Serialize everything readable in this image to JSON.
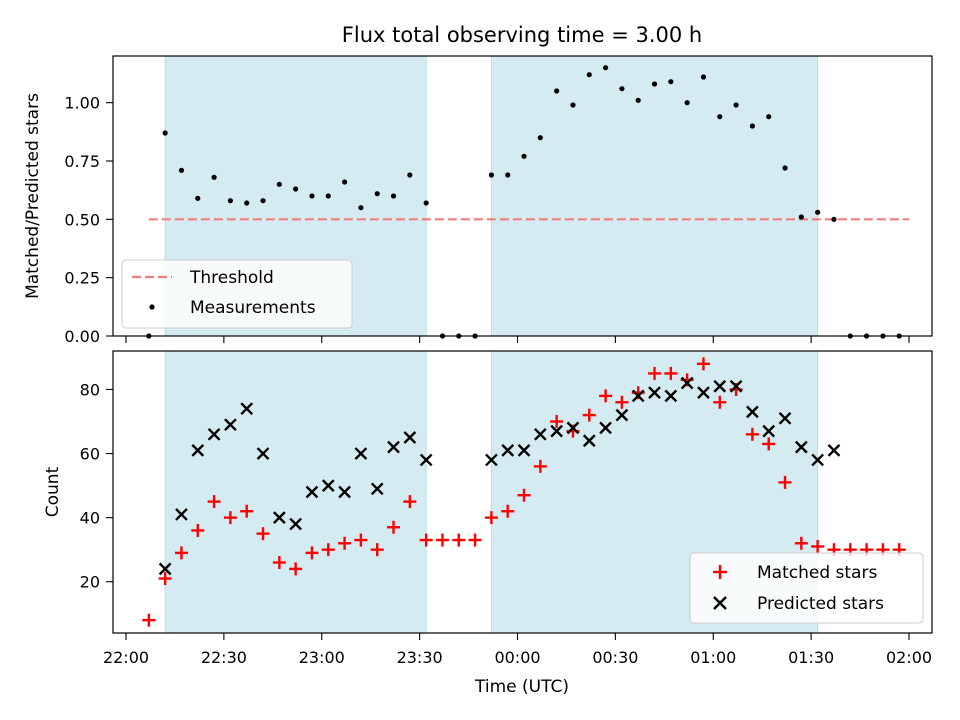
{
  "title": "Flux total observing time = 3.00 h",
  "colors": {
    "band": "#d4ebf1",
    "band_edge": "#b9dde8",
    "threshold": "#f27d7d",
    "matched": "#ff0000",
    "predicted": "#000000",
    "measurement": "#000000"
  },
  "chart_data": [
    {
      "type": "scatter",
      "panel": "top",
      "ylabel": "Matched/Predicted stars",
      "xlabel": "",
      "ylim": [
        0.0,
        1.2
      ],
      "yticks": [
        0.0,
        0.25,
        0.5,
        0.75,
        1.0
      ],
      "ytick_labels": [
        "0.00",
        "0.25",
        "0.50",
        "0.75",
        "1.00"
      ],
      "shaded_intervals": [
        [
          "22:12",
          "23:32"
        ],
        [
          "23:52",
          "01:32"
        ]
      ],
      "threshold": {
        "name": "Threshold",
        "value": 0.5,
        "x": [
          "22:07",
          "02:00"
        ]
      },
      "series": [
        {
          "name": "Measurements",
          "points": [
            [
              "22:07",
              0.0
            ],
            [
              "22:12",
              0.87
            ],
            [
              "22:17",
              0.71
            ],
            [
              "22:22",
              0.59
            ],
            [
              "22:27",
              0.68
            ],
            [
              "22:32",
              0.58
            ],
            [
              "22:37",
              0.57
            ],
            [
              "22:42",
              0.58
            ],
            [
              "22:47",
              0.65
            ],
            [
              "22:52",
              0.63
            ],
            [
              "22:57",
              0.6
            ],
            [
              "23:02",
              0.6
            ],
            [
              "23:07",
              0.66
            ],
            [
              "23:12",
              0.55
            ],
            [
              "23:17",
              0.61
            ],
            [
              "23:22",
              0.6
            ],
            [
              "23:27",
              0.69
            ],
            [
              "23:32",
              0.57
            ],
            [
              "23:37",
              0.0
            ],
            [
              "23:42",
              0.0
            ],
            [
              "23:47",
              0.0
            ],
            [
              "23:52",
              0.69
            ],
            [
              "23:57",
              0.69
            ],
            [
              "00:02",
              0.77
            ],
            [
              "00:07",
              0.85
            ],
            [
              "00:12",
              1.05
            ],
            [
              "00:17",
              0.99
            ],
            [
              "00:22",
              1.12
            ],
            [
              "00:27",
              1.15
            ],
            [
              "00:32",
              1.06
            ],
            [
              "00:37",
              1.01
            ],
            [
              "00:42",
              1.08
            ],
            [
              "00:47",
              1.09
            ],
            [
              "00:52",
              1.0
            ],
            [
              "00:57",
              1.11
            ],
            [
              "01:02",
              0.94
            ],
            [
              "01:07",
              0.99
            ],
            [
              "01:12",
              0.9
            ],
            [
              "01:17",
              0.94
            ],
            [
              "01:22",
              0.72
            ],
            [
              "01:27",
              0.51
            ],
            [
              "01:32",
              0.53
            ],
            [
              "01:37",
              0.5
            ],
            [
              "01:42",
              0.0
            ],
            [
              "01:47",
              0.0
            ],
            [
              "01:52",
              0.0
            ],
            [
              "01:57",
              0.0
            ]
          ]
        }
      ],
      "legend": {
        "placement": "lower-left",
        "entries": [
          "Threshold",
          "Measurements"
        ]
      }
    },
    {
      "type": "scatter",
      "panel": "bottom",
      "ylabel": "Count",
      "xlabel": "Time (UTC)",
      "ylim": [
        4,
        92
      ],
      "yticks": [
        20,
        40,
        60,
        80
      ],
      "ytick_labels": [
        "20",
        "40",
        "60",
        "80"
      ],
      "xticks": [
        "22:00",
        "22:30",
        "23:00",
        "23:30",
        "00:00",
        "00:30",
        "01:00",
        "01:30",
        "02:00"
      ],
      "shaded_intervals": [
        [
          "22:12",
          "23:32"
        ],
        [
          "23:52",
          "01:32"
        ]
      ],
      "series": [
        {
          "name": "Matched stars",
          "marker": "+",
          "points": [
            [
              "22:07",
              8
            ],
            [
              "22:12",
              21
            ],
            [
              "22:17",
              29
            ],
            [
              "22:22",
              36
            ],
            [
              "22:27",
              45
            ],
            [
              "22:32",
              40
            ],
            [
              "22:37",
              42
            ],
            [
              "22:42",
              35
            ],
            [
              "22:47",
              26
            ],
            [
              "22:52",
              24
            ],
            [
              "22:57",
              29
            ],
            [
              "23:02",
              30
            ],
            [
              "23:07",
              32
            ],
            [
              "23:12",
              33
            ],
            [
              "23:17",
              30
            ],
            [
              "23:22",
              37
            ],
            [
              "23:27",
              45
            ],
            [
              "23:32",
              33
            ],
            [
              "23:37",
              33
            ],
            [
              "23:42",
              33
            ],
            [
              "23:47",
              33
            ],
            [
              "23:52",
              40
            ],
            [
              "23:57",
              42
            ],
            [
              "00:02",
              47
            ],
            [
              "00:07",
              56
            ],
            [
              "00:12",
              70
            ],
            [
              "00:17",
              67
            ],
            [
              "00:22",
              72
            ],
            [
              "00:27",
              78
            ],
            [
              "00:32",
              76
            ],
            [
              "00:37",
              79
            ],
            [
              "00:42",
              85
            ],
            [
              "00:47",
              85
            ],
            [
              "00:52",
              83
            ],
            [
              "00:57",
              88
            ],
            [
              "01:02",
              76
            ],
            [
              "01:07",
              80
            ],
            [
              "01:12",
              66
            ],
            [
              "01:17",
              63
            ],
            [
              "01:22",
              51
            ],
            [
              "01:27",
              32
            ],
            [
              "01:32",
              31
            ],
            [
              "01:37",
              30
            ],
            [
              "01:42",
              30
            ],
            [
              "01:47",
              30
            ],
            [
              "01:52",
              30
            ],
            [
              "01:57",
              30
            ]
          ]
        },
        {
          "name": "Predicted stars",
          "marker": "x",
          "points": [
            [
              "22:12",
              24
            ],
            [
              "22:17",
              41
            ],
            [
              "22:22",
              61
            ],
            [
              "22:27",
              66
            ],
            [
              "22:32",
              69
            ],
            [
              "22:37",
              74
            ],
            [
              "22:42",
              60
            ],
            [
              "22:47",
              40
            ],
            [
              "22:52",
              38
            ],
            [
              "22:57",
              48
            ],
            [
              "23:02",
              50
            ],
            [
              "23:07",
              48
            ],
            [
              "23:12",
              60
            ],
            [
              "23:17",
              49
            ],
            [
              "23:22",
              62
            ],
            [
              "23:27",
              65
            ],
            [
              "23:32",
              58
            ],
            [
              "23:52",
              58
            ],
            [
              "23:57",
              61
            ],
            [
              "00:02",
              61
            ],
            [
              "00:07",
              66
            ],
            [
              "00:12",
              67
            ],
            [
              "00:17",
              68
            ],
            [
              "00:22",
              64
            ],
            [
              "00:27",
              68
            ],
            [
              "00:32",
              72
            ],
            [
              "00:37",
              78
            ],
            [
              "00:42",
              79
            ],
            [
              "00:47",
              78
            ],
            [
              "00:52",
              82
            ],
            [
              "00:57",
              79
            ],
            [
              "01:02",
              81
            ],
            [
              "01:07",
              81
            ],
            [
              "01:12",
              73
            ],
            [
              "01:17",
              67
            ],
            [
              "01:22",
              71
            ],
            [
              "01:27",
              62
            ],
            [
              "01:32",
              58
            ],
            [
              "01:37",
              61
            ]
          ]
        }
      ],
      "legend": {
        "placement": "lower-right",
        "entries": [
          "Matched stars",
          "Predicted stars"
        ]
      }
    }
  ]
}
